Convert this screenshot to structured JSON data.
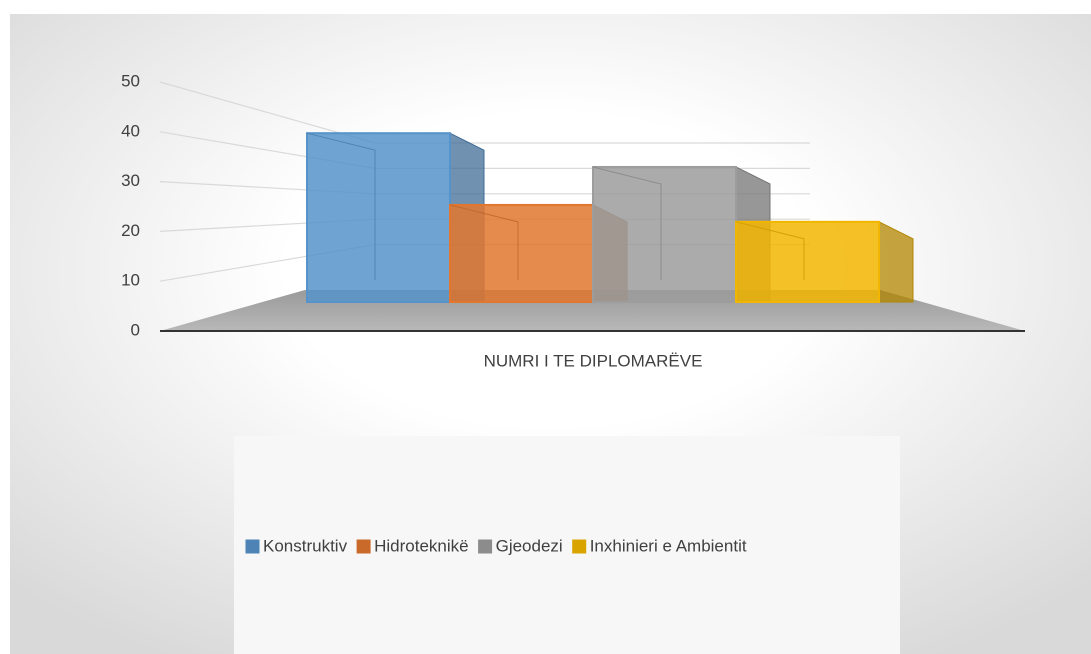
{
  "chart_data": {
    "type": "bar3d",
    "categories": [
      "NUMRI I TE DIPLOMARËVE"
    ],
    "series": [
      {
        "name": "Konstruktiv",
        "color": "#5b9bd5",
        "values": [
          40
        ]
      },
      {
        "name": "Hidroteknikë",
        "color": "#ed7d31",
        "values": [
          23
        ]
      },
      {
        "name": "Gjeodezi",
        "color": "#a5a5a5",
        "values": [
          32
        ]
      },
      {
        "name": "Inxhinieri e Ambientit",
        "color": "#ffc000",
        "values": [
          19
        ]
      }
    ],
    "ylim": [
      0,
      50
    ],
    "yticks": [
      0,
      10,
      20,
      30,
      40,
      50
    ],
    "grid": true,
    "legend": "bottom"
  }
}
